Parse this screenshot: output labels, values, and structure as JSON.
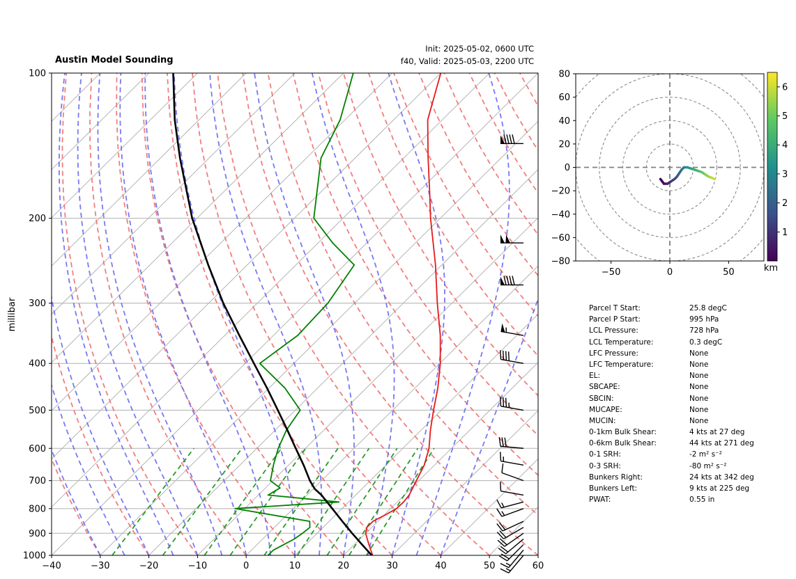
{
  "titles": {
    "left": "Austin Model Sounding",
    "init": "Init: 2025-05-02, 0600 UTC",
    "valid": "f40, Valid: 2025-05-03, 2200 UTC"
  },
  "chart_data": [
    {
      "type": "skew-t",
      "ylabel": "millibar",
      "xlim": [
        -40,
        60
      ],
      "ylim": [
        1000,
        100
      ],
      "y_scale": "log",
      "x_ticks": [
        "−40",
        "−30",
        "−20",
        "−10",
        "0",
        "10",
        "20",
        "30",
        "40",
        "50",
        "60"
      ],
      "y_ticks": [
        "100",
        "200",
        "300",
        "400",
        "500",
        "600",
        "700",
        "800",
        "900",
        "1000"
      ],
      "grid": true,
      "series": [
        {
          "color": "#e41a1c",
          "points": [
            [
              1000,
              26
            ],
            [
              975,
              24.5
            ],
            [
              950,
              23
            ],
            [
              925,
              21.5
            ],
            [
              900,
              20
            ],
            [
              875,
              19
            ],
            [
              850,
              19
            ],
            [
              825,
              20.2
            ],
            [
              800,
              21.2
            ],
            [
              775,
              21.3
            ],
            [
              750,
              21
            ],
            [
              700,
              19.5
            ],
            [
              650,
              17.9
            ],
            [
              600,
              15.4
            ],
            [
              550,
              11.9
            ],
            [
              500,
              8.4
            ],
            [
              450,
              4.7
            ],
            [
              400,
              0.1
            ],
            [
              350,
              -5.7
            ],
            [
              300,
              -13
            ],
            [
              250,
              -21.3
            ],
            [
              200,
              -32
            ],
            [
              175,
              -38
            ],
            [
              150,
              -45
            ],
            [
              125,
              -53
            ],
            [
              100,
              -60
            ]
          ]
        },
        {
          "color": "#008000",
          "points": [
            [
              1000,
              4.5
            ],
            [
              975,
              4.5
            ],
            [
              950,
              5.5
            ],
            [
              925,
              6.5
            ],
            [
              900,
              7
            ],
            [
              875,
              7.3
            ],
            [
              850,
              6
            ],
            [
              800,
              -12
            ],
            [
              775,
              8
            ],
            [
              750,
              -8
            ],
            [
              725,
              -7
            ],
            [
              700,
              -10.5
            ],
            [
              650,
              -13.1
            ],
            [
              600,
              -15.6
            ],
            [
              550,
              -17.7
            ],
            [
              500,
              -19
            ],
            [
              450,
              -26.7
            ],
            [
              400,
              -37
            ],
            [
              350,
              -35
            ],
            [
              300,
              -35.5
            ],
            [
              250,
              -38
            ],
            [
              225,
              -47
            ],
            [
              200,
              -56
            ],
            [
              150,
              -67
            ],
            [
              125,
              -71
            ],
            [
              100,
              -78
            ]
          ]
        },
        {
          "color": "#000000",
          "points": [
            [
              1000,
              25.8
            ],
            [
              950,
              21.6
            ],
            [
              900,
              17.2
            ],
            [
              850,
              12.7
            ],
            [
              800,
              8.0
            ],
            [
              750,
              3.0
            ],
            [
              728,
              0.3
            ],
            [
              700,
              -2.4
            ],
            [
              650,
              -6.9
            ],
            [
              600,
              -12
            ],
            [
              550,
              -17.5
            ],
            [
              500,
              -23.6
            ],
            [
              450,
              -30.4
            ],
            [
              400,
              -38.2
            ],
            [
              350,
              -47
            ],
            [
              300,
              -57
            ],
            [
              250,
              -68
            ],
            [
              200,
              -81
            ],
            [
              150,
              -96
            ],
            [
              125,
              -105
            ],
            [
              100,
              -115
            ]
          ]
        }
      ],
      "barbs": [
        {
          "p": 1000,
          "spd": 15,
          "dir": 220
        },
        {
          "p": 975,
          "spd": 15,
          "dir": 220
        },
        {
          "p": 950,
          "spd": 20,
          "dir": 225
        },
        {
          "p": 925,
          "spd": 20,
          "dir": 230
        },
        {
          "p": 900,
          "spd": 20,
          "dir": 235
        },
        {
          "p": 875,
          "spd": 20,
          "dir": 240
        },
        {
          "p": 850,
          "spd": 20,
          "dir": 245
        },
        {
          "p": 800,
          "spd": 15,
          "dir": 250
        },
        {
          "p": 775,
          "spd": 15,
          "dir": 255
        },
        {
          "p": 750,
          "spd": 10,
          "dir": 280
        },
        {
          "p": 700,
          "spd": 10,
          "dir": 290
        },
        {
          "p": 650,
          "spd": 15,
          "dir": 280
        },
        {
          "p": 600,
          "spd": 30,
          "dir": 275
        },
        {
          "p": 500,
          "spd": 35,
          "dir": 280
        },
        {
          "p": 400,
          "spd": 40,
          "dir": 280
        },
        {
          "p": 350,
          "spd": 55,
          "dir": 280
        },
        {
          "p": 275,
          "spd": 90,
          "dir": 270
        },
        {
          "p": 225,
          "spd": 100,
          "dir": 270
        },
        {
          "p": 140,
          "spd": 90,
          "dir": 270
        }
      ]
    },
    {
      "type": "hodograph",
      "xlim": [
        -80,
        80
      ],
      "ylim": [
        -80,
        80
      ],
      "x_ticks": [
        "−50",
        "0",
        "50"
      ],
      "y_ticks": [
        "80",
        "60",
        "40",
        "20",
        "0",
        "−20",
        "−40",
        "−60",
        "−80"
      ],
      "ring_spacing": 20,
      "points": [
        [
          -8,
          -10
        ],
        [
          -5,
          -14
        ],
        [
          -2,
          -14
        ],
        [
          1,
          -12
        ],
        [
          4,
          -10
        ],
        [
          6,
          -8
        ],
        [
          8,
          -5
        ],
        [
          10,
          -2
        ],
        [
          12,
          0
        ],
        [
          15,
          0
        ],
        [
          18,
          -1
        ],
        [
          21,
          -2
        ],
        [
          24,
          -3
        ],
        [
          27,
          -4
        ],
        [
          30,
          -6
        ],
        [
          33,
          -8
        ],
        [
          36,
          -9
        ],
        [
          38,
          -10
        ]
      ],
      "colorbar": {
        "label": "km",
        "ticks": [
          "6",
          "5",
          "4",
          "3",
          "2",
          "1"
        ],
        "range": [
          0,
          6.5
        ]
      }
    }
  ],
  "parameters": [
    {
      "label": "Parcel T Start:",
      "value": "25.8 degC"
    },
    {
      "label": "Parcel P Start:",
      "value": "995 hPa"
    },
    {
      "label": "LCL Pressure:",
      "value": "728 hPa"
    },
    {
      "label": "LCL Temperature:",
      "value": "0.3 degC"
    },
    {
      "label": "LFC Pressure:",
      "value": "None"
    },
    {
      "label": "LFC Temperature:",
      "value": "None"
    },
    {
      "label": "EL:",
      "value": "None"
    },
    {
      "label": "SBCAPE:",
      "value": "None"
    },
    {
      "label": "SBCIN:",
      "value": "None"
    },
    {
      "label": "MUCAPE:",
      "value": "None"
    },
    {
      "label": "MUCIN:",
      "value": "None"
    },
    {
      "label": "0-1km Bulk Shear:",
      "value": "4 kts at 27 deg"
    },
    {
      "label": "0-6km Bulk Shear:",
      "value": "44 kts at 271 deg"
    },
    {
      "label": "0-1 SRH:",
      "value": "-2 m² s⁻²"
    },
    {
      "label": "0-3 SRH:",
      "value": "-80 m² s⁻²"
    },
    {
      "label": "Bunkers Right:",
      "value": "24 kts at 342 deg"
    },
    {
      "label": "Bunkers Left:",
      "value": "9 kts at 225 deg"
    },
    {
      "label": "PWAT:",
      "value": "0.55 in"
    }
  ]
}
